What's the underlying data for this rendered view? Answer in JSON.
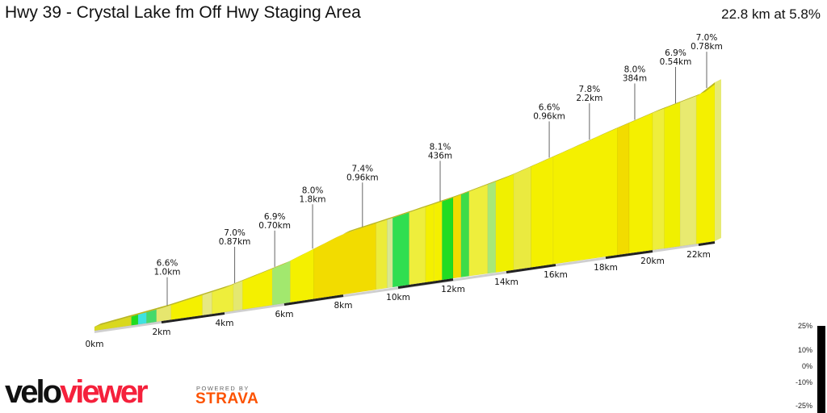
{
  "header": {
    "title": "Hwy 39 - Crystal Lake fm Off Hwy Staging Area",
    "summary": "22.8 km at 5.8%"
  },
  "chart_data": {
    "type": "area",
    "title": "Hwy 39 - Crystal Lake fm Off Hwy Staging Area",
    "distance_km": 22.8,
    "avg_gradient_pct": 5.8,
    "x_ticks": [
      "0km",
      "2km",
      "4km",
      "6km",
      "8km",
      "10km",
      "12km",
      "14km",
      "16km",
      "18km",
      "20km",
      "22km"
    ],
    "profile": {
      "km": [
        0,
        2,
        4,
        6,
        8,
        10,
        12,
        14,
        16,
        18,
        20,
        22,
        22.8
      ],
      "relative_elevation_m": [
        0,
        76,
        172,
        303,
        483,
        566,
        655,
        766,
        890,
        1021,
        1138,
        1235,
        1322
      ]
    },
    "segments": [
      {
        "from": 0,
        "to": 1.1,
        "color": "#d9d81e"
      },
      {
        "from": 1.1,
        "to": 1.3,
        "color": "#1fdc1f"
      },
      {
        "from": 1.3,
        "to": 1.55,
        "color": "#3fe2e0"
      },
      {
        "from": 1.55,
        "to": 1.85,
        "color": "#46d96a"
      },
      {
        "from": 1.85,
        "to": 2.3,
        "color": "#e6e66e"
      },
      {
        "from": 2.3,
        "to": 3.3,
        "color": "#f4f000"
      },
      {
        "from": 3.3,
        "to": 3.6,
        "color": "#e6e882"
      },
      {
        "from": 3.6,
        "to": 4.3,
        "color": "#eeee3c"
      },
      {
        "from": 4.3,
        "to": 4.6,
        "color": "#e4e870"
      },
      {
        "from": 4.6,
        "to": 5.6,
        "color": "#f4f000"
      },
      {
        "from": 5.6,
        "to": 6.2,
        "color": "#a2e86e"
      },
      {
        "from": 6.2,
        "to": 7.0,
        "color": "#f4f000"
      },
      {
        "from": 7.0,
        "to": 9.2,
        "color": "#f2dc00"
      },
      {
        "from": 9.2,
        "to": 9.6,
        "color": "#ecec3a"
      },
      {
        "from": 9.6,
        "to": 9.8,
        "color": "#d8e892"
      },
      {
        "from": 9.8,
        "to": 10.4,
        "color": "#30de50"
      },
      {
        "from": 10.4,
        "to": 11.0,
        "color": "#eeee3c"
      },
      {
        "from": 11.0,
        "to": 11.3,
        "color": "#f4f000"
      },
      {
        "from": 11.3,
        "to": 11.6,
        "color": "#f4f000"
      },
      {
        "from": 11.6,
        "to": 12.0,
        "color": "#22dc22"
      },
      {
        "from": 12.0,
        "to": 12.3,
        "color": "#f2dc00"
      },
      {
        "from": 12.3,
        "to": 12.6,
        "color": "#3ddc48"
      },
      {
        "from": 12.6,
        "to": 13.3,
        "color": "#eeee3c"
      },
      {
        "from": 13.3,
        "to": 13.6,
        "color": "#a8e878"
      },
      {
        "from": 13.6,
        "to": 14.3,
        "color": "#f0f000"
      },
      {
        "from": 14.3,
        "to": 15.0,
        "color": "#eaea40"
      },
      {
        "from": 15.0,
        "to": 15.9,
        "color": "#f4f000"
      },
      {
        "from": 15.9,
        "to": 18.5,
        "color": "#f4f000"
      },
      {
        "from": 18.5,
        "to": 19.0,
        "color": "#f2dc00"
      },
      {
        "from": 19.0,
        "to": 20.0,
        "color": "#f4f000"
      },
      {
        "from": 20.0,
        "to": 20.5,
        "color": "#eeee3c"
      },
      {
        "from": 20.5,
        "to": 21.2,
        "color": "#f0f000"
      },
      {
        "from": 21.2,
        "to": 21.9,
        "color": "#e8ea70"
      },
      {
        "from": 21.9,
        "to": 22.8,
        "color": "#f4f000"
      }
    ],
    "annotations": [
      {
        "km": 2.18,
        "gradient": "6.6%",
        "length": "1.0km"
      },
      {
        "km": 4.34,
        "gradient": "7.0%",
        "length": "0.87km"
      },
      {
        "km": 5.68,
        "gradient": "6.9%",
        "length": "0.70km"
      },
      {
        "km": 6.96,
        "gradient": "8.0%",
        "length": "1.8km"
      },
      {
        "km": 8.7,
        "gradient": "7.4%",
        "length": "0.96km"
      },
      {
        "km": 11.53,
        "gradient": "8.1%",
        "length": "436m"
      },
      {
        "km": 15.74,
        "gradient": "6.6%",
        "length": "0.96km"
      },
      {
        "km": 17.35,
        "gradient": "7.8%",
        "length": "2.2km"
      },
      {
        "km": 19.24,
        "gradient": "8.0%",
        "length": "384m"
      },
      {
        "km": 21.0,
        "gradient": "6.9%",
        "length": "0.54km"
      },
      {
        "km": 22.4,
        "gradient": "7.0%",
        "length": "0.78km"
      }
    ],
    "legend": {
      "ticks": [
        "25%",
        "10%",
        "0%",
        "-10%",
        "-25%"
      ]
    }
  },
  "branding": {
    "velo": "velo",
    "viewer": "viewer",
    "powered_by": "POWERED BY",
    "strava": "STRAVA"
  }
}
